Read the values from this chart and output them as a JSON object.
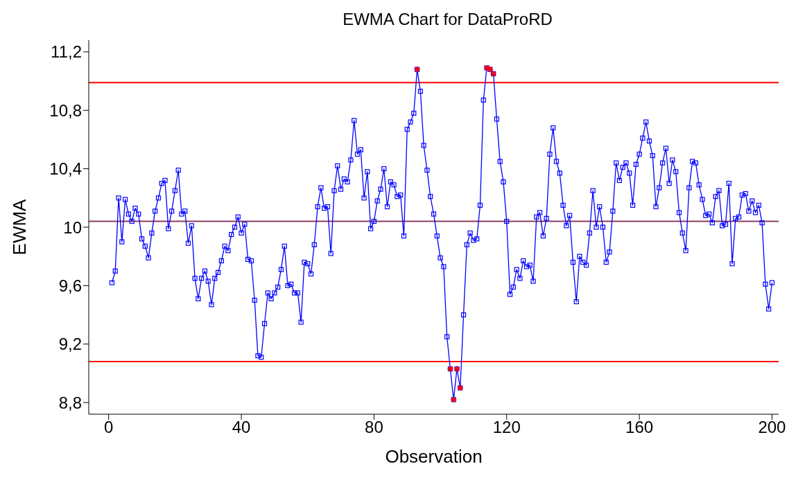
{
  "chart_data": {
    "type": "line",
    "title": "EWMA Chart for DataProRD",
    "xlabel": "Observation",
    "ylabel": "EWMA",
    "x": [
      1,
      2,
      3,
      4,
      5,
      6,
      7,
      8,
      9,
      10,
      11,
      12,
      13,
      14,
      15,
      16,
      17,
      18,
      19,
      20,
      21,
      22,
      23,
      24,
      25,
      26,
      27,
      28,
      29,
      30,
      31,
      32,
      33,
      34,
      35,
      36,
      37,
      38,
      39,
      40,
      41,
      42,
      43,
      44,
      45,
      46,
      47,
      48,
      49,
      50,
      51,
      52,
      53,
      54,
      55,
      56,
      57,
      58,
      59,
      60,
      61,
      62,
      63,
      64,
      65,
      66,
      67,
      68,
      69,
      70,
      71,
      72,
      73,
      74,
      75,
      76,
      77,
      78,
      79,
      80,
      81,
      82,
      83,
      84,
      85,
      86,
      87,
      88,
      89,
      90,
      91,
      92,
      93,
      94,
      95,
      96,
      97,
      98,
      99,
      100,
      101,
      102,
      103,
      104,
      105,
      106,
      107,
      108,
      109,
      110,
      111,
      112,
      113,
      114,
      115,
      116,
      117,
      118,
      119,
      120,
      121,
      122,
      123,
      124,
      125,
      126,
      127,
      128,
      129,
      130,
      131,
      132,
      133,
      134,
      135,
      136,
      137,
      138,
      139,
      140,
      141,
      142,
      143,
      144,
      145,
      146,
      147,
      148,
      149,
      150,
      151,
      152,
      153,
      154,
      155,
      156,
      157,
      158,
      159,
      160,
      161,
      162,
      163,
      164,
      165,
      166,
      167,
      168,
      169,
      170,
      171,
      172,
      173,
      174,
      175,
      176,
      177,
      178,
      179,
      180,
      181,
      182,
      183,
      184,
      185,
      186,
      187,
      188,
      189,
      190,
      191,
      192,
      193,
      194,
      195,
      196,
      197,
      198,
      199,
      200
    ],
    "series": [
      {
        "color": "#0000ff",
        "marker": "square",
        "line_style": "solid",
        "values": [
          9.62,
          9.7,
          10.2,
          9.9,
          10.19,
          10.09,
          10.04,
          10.13,
          10.09,
          9.92,
          9.87,
          9.79,
          9.96,
          10.11,
          10.2,
          10.3,
          10.32,
          9.99,
          10.11,
          10.25,
          10.39,
          10.09,
          10.11,
          9.89,
          10.01,
          9.65,
          9.51,
          9.65,
          9.7,
          9.63,
          9.47,
          9.65,
          9.69,
          9.77,
          9.87,
          9.84,
          9.95,
          10.0,
          10.07,
          9.96,
          10.02,
          9.78,
          9.77,
          9.5,
          9.12,
          9.11,
          9.34,
          9.55,
          9.51,
          9.55,
          9.59,
          9.71,
          9.87,
          9.6,
          9.61,
          9.55,
          9.55,
          9.35,
          9.76,
          9.75,
          9.68,
          9.88,
          10.14,
          10.27,
          10.13,
          10.14,
          9.82,
          10.25,
          10.42,
          10.26,
          10.33,
          10.31,
          10.46,
          10.73,
          10.5,
          10.53,
          10.2,
          10.38,
          9.99,
          10.04,
          10.18,
          10.26,
          10.4,
          10.14,
          10.31,
          10.29,
          10.21,
          10.22,
          9.94,
          10.67,
          10.72,
          10.78,
          11.08,
          10.93,
          10.56,
          10.39,
          10.21,
          10.09,
          9.94,
          9.79,
          9.73,
          9.25,
          9.03,
          8.82,
          9.03,
          8.9,
          9.4,
          9.88,
          9.96,
          9.91,
          9.92,
          10.15,
          10.87,
          11.09,
          11.08,
          11.05,
          10.74,
          10.45,
          10.31,
          10.04,
          9.54,
          9.59,
          9.71,
          9.65,
          9.77,
          9.73,
          9.74,
          9.63,
          10.07,
          10.1,
          9.94,
          10.06,
          10.5,
          10.68,
          10.45,
          10.37,
          10.15,
          10.01,
          10.08,
          9.76,
          9.49,
          9.8,
          9.76,
          9.74,
          9.96,
          10.25,
          10.0,
          10.14,
          10.0,
          9.76,
          9.83,
          10.11,
          10.44,
          10.32,
          10.41,
          10.44,
          10.37,
          10.15,
          10.43,
          10.5,
          10.61,
          10.72,
          10.59,
          10.49,
          10.14,
          10.27,
          10.44,
          10.54,
          10.3,
          10.46,
          10.38,
          10.1,
          9.96,
          9.84,
          10.27,
          10.45,
          10.44,
          10.29,
          10.19,
          10.08,
          10.09,
          10.03,
          10.21,
          10.25,
          10.01,
          10.02,
          10.3,
          9.75,
          10.06,
          10.07,
          10.22,
          10.23,
          10.11,
          10.18,
          10.1,
          10.15,
          10.03,
          9.61,
          9.44,
          9.62
        ]
      },
      {
        "type": "scatter",
        "color": "#ff0000",
        "marker": "cross",
        "x": [
          93,
          103,
          104,
          105,
          106,
          114,
          115,
          116
        ],
        "values": [
          11.08,
          9.03,
          8.82,
          9.03,
          8.9,
          11.09,
          11.08,
          11.05
        ]
      }
    ],
    "xlim": [
      -6,
      202
    ],
    "xticks": [
      0,
      40,
      80,
      120,
      160,
      200
    ],
    "ylim": [
      8.72,
      11.28
    ],
    "yticks": [
      {
        "value": 8.8,
        "label": "8,8"
      },
      {
        "value": 9.2,
        "label": "9,2"
      },
      {
        "value": 9.6,
        "label": "9,6"
      },
      {
        "value": 10,
        "label": "10"
      },
      {
        "value": 10.4,
        "label": "10,4"
      },
      {
        "value": 10.8,
        "label": "10,8"
      },
      {
        "value": 11.2,
        "label": "11,2"
      }
    ],
    "ref_lines": [
      {
        "axis": "y",
        "value": 10.99,
        "color": "#ff0000",
        "line_style": "solid"
      },
      {
        "axis": "y",
        "value": 10.04,
        "color": "#8b3a62",
        "line_style": "solid"
      },
      {
        "axis": "y",
        "value": 9.08,
        "color": "#ff0000",
        "line_style": "solid"
      }
    ],
    "grid": false,
    "legend": false
  }
}
